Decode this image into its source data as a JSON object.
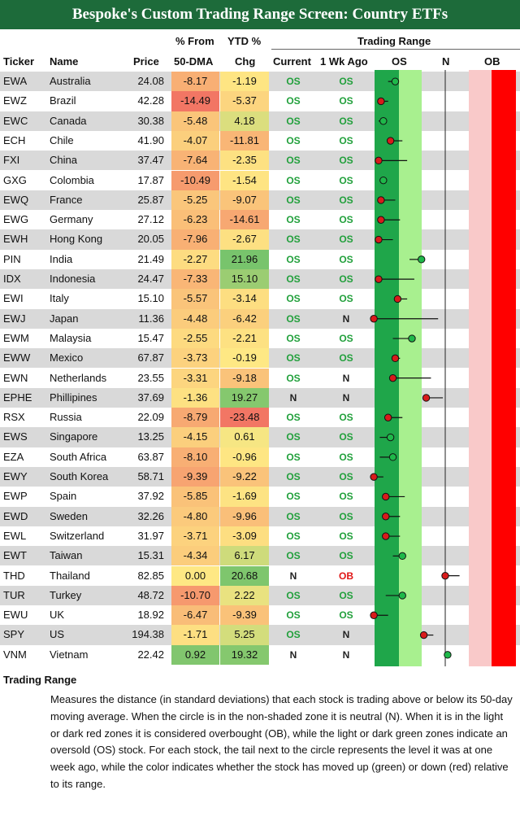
{
  "title": "Bespoke's Custom Trading Range Screen: Country ETFs",
  "headers": {
    "ticker": "Ticker",
    "name": "Name",
    "price": "Price",
    "pct50_line1": "% From",
    "pct50_line2": "50-DMA",
    "ytd_line1": "YTD %",
    "ytd_line2": "Chg",
    "trading_range": "Trading Range",
    "current": "Current",
    "wk_ago": "1 Wk Ago",
    "zone_os": "OS",
    "zone_n": "N",
    "zone_ob": "OB"
  },
  "colors": {
    "title_bar": "#1d6b3a",
    "dark_green_zone": "#1fa64a",
    "light_green_zone": "#a8f08f",
    "light_red_zone": "#f9c9c9",
    "dark_red_zone": "#ff0000",
    "os_text": "#22a03c",
    "ob_text": "#e01616"
  },
  "chart_data": {
    "type": "table",
    "columns": [
      "Ticker",
      "Name",
      "Price",
      "% From 50-DMA",
      "YTD % Chg",
      "Current",
      "1 Wk Ago",
      "Trading Range"
    ],
    "range_scale": {
      "note": "standard deviations from 50-DMA",
      "zones": [
        "OS",
        "N",
        "OB"
      ]
    },
    "rows": [
      {
        "ticker": "EWA",
        "name": "Australia",
        "price": "24.08",
        "d50": "-8.17",
        "ytd": "-1.19",
        "current": "OS",
        "wk": "OS",
        "now": -2.1,
        "prev": -2.4
      },
      {
        "ticker": "EWZ",
        "name": "Brazil",
        "price": "42.28",
        "d50": "-14.49",
        "ytd": "-5.37",
        "current": "OS",
        "wk": "OS",
        "now": -2.7,
        "prev": -2.4
      },
      {
        "ticker": "EWC",
        "name": "Canada",
        "price": "30.38",
        "d50": "-5.48",
        "ytd": "4.18",
        "current": "OS",
        "wk": "OS",
        "now": -2.6,
        "prev": -2.8
      },
      {
        "ticker": "ECH",
        "name": "Chile",
        "price": "41.90",
        "d50": "-4.07",
        "ytd": "-11.81",
        "current": "OS",
        "wk": "OS",
        "now": -2.3,
        "prev": -1.8
      },
      {
        "ticker": "FXI",
        "name": "China",
        "price": "37.47",
        "d50": "-7.64",
        "ytd": "-2.35",
        "current": "OS",
        "wk": "OS",
        "now": -2.8,
        "prev": -1.6
      },
      {
        "ticker": "GXG",
        "name": "Colombia",
        "price": "17.87",
        "d50": "-10.49",
        "ytd": "-1.54",
        "current": "OS",
        "wk": "OS",
        "now": -2.6,
        "prev": -2.75
      },
      {
        "ticker": "EWQ",
        "name": "France",
        "price": "25.87",
        "d50": "-5.25",
        "ytd": "-9.07",
        "current": "OS",
        "wk": "OS",
        "now": -2.7,
        "prev": -2.1
      },
      {
        "ticker": "EWG",
        "name": "Germany",
        "price": "27.12",
        "d50": "-6.23",
        "ytd": "-14.61",
        "current": "OS",
        "wk": "OS",
        "now": -2.7,
        "prev": -1.9
      },
      {
        "ticker": "EWH",
        "name": "Hong Kong",
        "price": "20.05",
        "d50": "-7.96",
        "ytd": "-2.67",
        "current": "OS",
        "wk": "OS",
        "now": -2.8,
        "prev": -2.2
      },
      {
        "ticker": "PIN",
        "name": "India",
        "price": "21.49",
        "d50": "-2.27",
        "ytd": "21.96",
        "current": "OS",
        "wk": "OS",
        "now": -1.0,
        "prev": -1.5
      },
      {
        "ticker": "IDX",
        "name": "Indonesia",
        "price": "24.47",
        "d50": "-7.33",
        "ytd": "15.10",
        "current": "OS",
        "wk": "OS",
        "now": -2.8,
        "prev": -1.3
      },
      {
        "ticker": "EWI",
        "name": "Italy",
        "price": "15.10",
        "d50": "-5.57",
        "ytd": "-3.14",
        "current": "OS",
        "wk": "OS",
        "now": -2.0,
        "prev": -1.6
      },
      {
        "ticker": "EWJ",
        "name": "Japan",
        "price": "11.36",
        "d50": "-4.48",
        "ytd": "-6.42",
        "current": "OS",
        "wk": "N",
        "now": -3.0,
        "prev": -0.3
      },
      {
        "ticker": "EWM",
        "name": "Malaysia",
        "price": "15.47",
        "d50": "-2.55",
        "ytd": "-2.21",
        "current": "OS",
        "wk": "OS",
        "now": -1.4,
        "prev": -2.2
      },
      {
        "ticker": "EWW",
        "name": "Mexico",
        "price": "67.87",
        "d50": "-3.73",
        "ytd": "-0.19",
        "current": "OS",
        "wk": "OS",
        "now": -2.1,
        "prev": -1.9
      },
      {
        "ticker": "EWN",
        "name": "Netherlands",
        "price": "23.55",
        "d50": "-3.31",
        "ytd": "-9.18",
        "current": "OS",
        "wk": "N",
        "now": -2.2,
        "prev": -0.6
      },
      {
        "ticker": "EPHE",
        "name": "Phillipines",
        "price": "37.69",
        "d50": "-1.36",
        "ytd": "19.27",
        "current": "N",
        "wk": "N",
        "now": -0.8,
        "prev": -0.1
      },
      {
        "ticker": "RSX",
        "name": "Russia",
        "price": "22.09",
        "d50": "-8.79",
        "ytd": "-23.48",
        "current": "OS",
        "wk": "OS",
        "now": -2.4,
        "prev": -1.8
      },
      {
        "ticker": "EWS",
        "name": "Singapore",
        "price": "13.25",
        "d50": "-4.15",
        "ytd": "0.61",
        "current": "OS",
        "wk": "OS",
        "now": -2.3,
        "prev": -2.75
      },
      {
        "ticker": "EZA",
        "name": "South Africa",
        "price": "63.87",
        "d50": "-8.10",
        "ytd": "-0.96",
        "current": "OS",
        "wk": "OS",
        "now": -2.2,
        "prev": -2.75
      },
      {
        "ticker": "EWY",
        "name": "South Korea",
        "price": "58.71",
        "d50": "-9.39",
        "ytd": "-9.22",
        "current": "OS",
        "wk": "OS",
        "now": -3.0,
        "prev": -2.6
      },
      {
        "ticker": "EWP",
        "name": "Spain",
        "price": "37.92",
        "d50": "-5.85",
        "ytd": "-1.69",
        "current": "OS",
        "wk": "OS",
        "now": -2.5,
        "prev": -1.7
      },
      {
        "ticker": "EWD",
        "name": "Sweden",
        "price": "32.26",
        "d50": "-4.80",
        "ytd": "-9.96",
        "current": "OS",
        "wk": "OS",
        "now": -2.5,
        "prev": -1.9
      },
      {
        "ticker": "EWL",
        "name": "Switzerland",
        "price": "31.97",
        "d50": "-3.71",
        "ytd": "-3.09",
        "current": "OS",
        "wk": "OS",
        "now": -2.5,
        "prev": -1.9
      },
      {
        "ticker": "EWT",
        "name": "Taiwan",
        "price": "15.31",
        "d50": "-4.34",
        "ytd": "6.17",
        "current": "OS",
        "wk": "OS",
        "now": -1.8,
        "prev": -2.2
      },
      {
        "ticker": "THD",
        "name": "Thailand",
        "price": "82.85",
        "d50": "0.00",
        "ytd": "20.68",
        "current": "N",
        "wk": "OB",
        "now": 0.0,
        "prev": 0.6
      },
      {
        "ticker": "TUR",
        "name": "Turkey",
        "price": "48.72",
        "d50": "-10.70",
        "ytd": "2.22",
        "current": "OS",
        "wk": "OS",
        "now": -1.8,
        "prev": -2.5
      },
      {
        "ticker": "EWU",
        "name": "UK",
        "price": "18.92",
        "d50": "-6.47",
        "ytd": "-9.39",
        "current": "OS",
        "wk": "OS",
        "now": -3.0,
        "prev": -2.4
      },
      {
        "ticker": "SPY",
        "name": "US",
        "price": "194.38",
        "d50": "-1.71",
        "ytd": "5.25",
        "current": "OS",
        "wk": "N",
        "now": -0.9,
        "prev": -0.5
      },
      {
        "ticker": "VNM",
        "name": "Vietnam",
        "price": "22.42",
        "d50": "0.92",
        "ytd": "19.32",
        "current": "N",
        "wk": "N",
        "now": 0.1,
        "prev": 0.0
      }
    ]
  },
  "notes": {
    "heading": "Trading Range",
    "body": "Measures the distance (in standard deviations) that each stock is trading above or below its 50-day moving average.  When the circle is in the non-shaded zone it is neutral (N).  When it is in the light or dark red zones it is considered overbought (OB), while the light or dark green zones indicate an oversold (OS) stock.  For each stock, the tail next to the circle represents the level it was at one week ago, while the color indicates whether the stock has moved up (green) or down (red) relative to its range."
  }
}
